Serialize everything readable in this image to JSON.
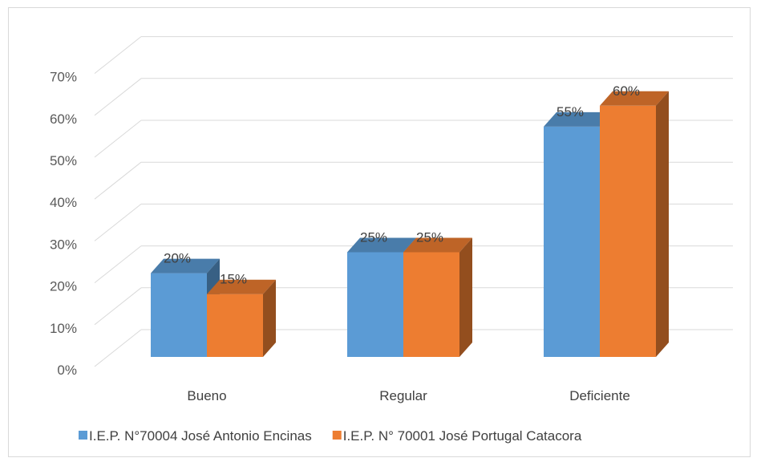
{
  "chart_data": {
    "type": "bar",
    "style": "3d-clustered-column",
    "categories": [
      "Bueno",
      "Regular",
      "Deficiente"
    ],
    "series": [
      {
        "name": "I.E.P. N°70004 José Antonio Encinas",
        "values": [
          20,
          25,
          55
        ],
        "labels": [
          "20%",
          "25%",
          "55%"
        ],
        "color": "#5b9bd5"
      },
      {
        "name": "I.E.P. N° 70001 José Portugal Catacora",
        "values": [
          15,
          25,
          60
        ],
        "labels": [
          "15%",
          "25%",
          "60%"
        ],
        "color": "#ed7d31"
      }
    ],
    "yticks": [
      0,
      10,
      20,
      30,
      40,
      50,
      60,
      70
    ],
    "ytick_labels": [
      "0%",
      "10%",
      "20%",
      "30%",
      "40%",
      "50%",
      "60%",
      "70%"
    ],
    "ylim": [
      0,
      70
    ],
    "title": "",
    "xlabel": "",
    "ylabel": "",
    "grid": true,
    "legend_position": "bottom"
  }
}
